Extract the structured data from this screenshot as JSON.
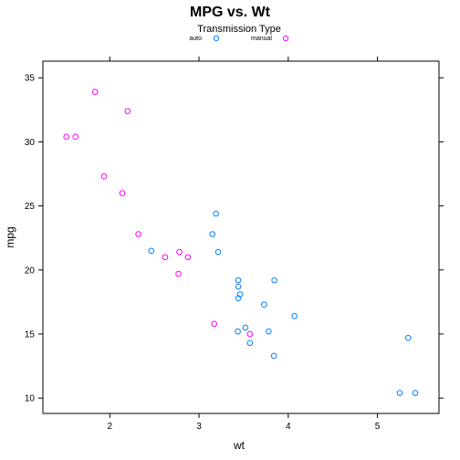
{
  "chart_data": {
    "type": "scatter",
    "title": "MPG vs. Wt",
    "xlabel": "wt",
    "ylabel": "mpg",
    "xlim": [
      1.25,
      5.69
    ],
    "ylim": [
      8.8,
      36.3
    ],
    "xticks": [
      2,
      3,
      4,
      5
    ],
    "yticks": [
      10,
      15,
      20,
      25,
      30,
      35
    ],
    "legend": {
      "title": "Transmission Type",
      "placement": "top",
      "entries": [
        "auto",
        "manual"
      ]
    },
    "grid": false,
    "series": [
      {
        "name": "auto",
        "color": "#0080ff",
        "x": [
          3.215,
          3.44,
          3.46,
          3.57,
          3.19,
          3.15,
          3.44,
          3.44,
          4.07,
          3.73,
          3.78,
          5.25,
          5.424,
          5.345,
          2.465,
          3.52,
          3.435,
          3.84,
          3.845
        ],
        "y": [
          21.4,
          18.7,
          18.1,
          14.3,
          24.4,
          22.8,
          19.2,
          17.8,
          16.4,
          17.3,
          15.2,
          10.4,
          10.4,
          14.7,
          21.5,
          15.5,
          15.2,
          13.3,
          19.2
        ]
      },
      {
        "name": "manual",
        "color": "#ff00ff",
        "x": [
          2.62,
          2.875,
          2.32,
          2.2,
          1.615,
          1.835,
          1.935,
          2.14,
          1.513,
          3.17,
          2.77,
          3.57,
          2.78
        ],
        "y": [
          21.0,
          21.0,
          22.8,
          32.4,
          30.4,
          33.9,
          27.3,
          26.0,
          30.4,
          15.8,
          19.7,
          15.0,
          21.4
        ]
      }
    ]
  }
}
